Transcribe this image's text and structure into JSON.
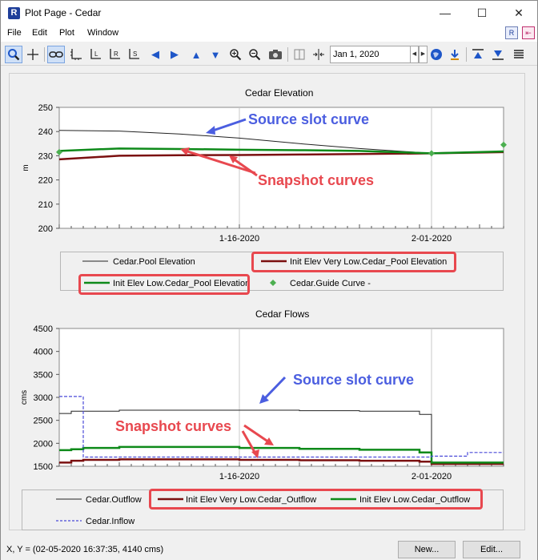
{
  "window": {
    "title": "Plot Page - Cedar",
    "app_icon_letter": "R",
    "minimize": "—",
    "maximize": "☐",
    "close": "✕"
  },
  "menu": {
    "items": [
      "File",
      "Edit",
      "Plot",
      "Window"
    ]
  },
  "toolbar": {
    "date_value": "Jan 1, 2020",
    "icons": [
      "zoom-icon",
      "crosshair-icon",
      "link-icon",
      "axis-icon",
      "axis-left-icon",
      "axis-right-icon",
      "axis-s-icon",
      "arrow-left-icon",
      "arrow-right-icon",
      "arrow-up-icon",
      "arrow-down-icon",
      "zoom-in-icon",
      "zoom-out-icon",
      "camera-icon",
      "split-icon",
      "fit-icon",
      "globe-icon",
      "download-icon",
      "align-top-icon",
      "align-bottom-icon",
      "list-icon"
    ]
  },
  "chart1": {
    "title": "Cedar Elevation",
    "legend": {
      "pool": "Cedar.Pool Elevation",
      "verylow": "Init Elev Very Low.Cedar_Pool Elevation",
      "low": "Init Elev Low.Cedar_Pool Elevation",
      "guide": "Cedar.Guide Curve -"
    },
    "annotations": {
      "source": "Source slot curve",
      "snapshot": "Snapshot curves"
    }
  },
  "chart2": {
    "title": "Cedar Flows",
    "legend": {
      "outflow": "Cedar.Outflow",
      "verylow": "Init Elev Very Low.Cedar_Outflow",
      "low": "Init Elev Low.Cedar_Outflow",
      "inflow": "Cedar.Inflow"
    },
    "annotations": {
      "source": "Source slot curve",
      "snapshot": "Snapshot curves"
    }
  },
  "status": {
    "xy": "X, Y = (02-05-2020 16:37:35, 4140 cms)"
  },
  "buttons": {
    "new": "New...",
    "edit": "Edit..."
  },
  "colors": {
    "source": "#222222",
    "verylow": "#7b1010",
    "low": "#0e8a1a",
    "inflow": "#4a4ad8",
    "guide": "#4caf50",
    "annotation_blue": "#4b5ee0",
    "annotation_red": "#e8484f"
  },
  "chart_data": [
    {
      "type": "line",
      "title": "Cedar Elevation",
      "xlabel": "",
      "ylabel": "m",
      "x_ticks": [
        "1-16-2020",
        "2-01-2020"
      ],
      "x_range": [
        "2020-01-01",
        "2020-02-07"
      ],
      "ylim": [
        200,
        250
      ],
      "y_ticks": [
        200,
        210,
        220,
        230,
        240,
        250
      ],
      "grid": true,
      "x": [
        "2020-01-01",
        "2020-01-06",
        "2020-01-11",
        "2020-01-16",
        "2020-01-21",
        "2020-01-26",
        "2020-02-01",
        "2020-02-07"
      ],
      "series": [
        {
          "name": "Cedar.Pool Elevation",
          "values": [
            240.5,
            240.2,
            239.0,
            237.3,
            235.0,
            233.0,
            231.0,
            231.5
          ]
        },
        {
          "name": "Init Elev Very Low.Cedar_Pool Elevation",
          "values": [
            228.5,
            230.0,
            230.2,
            230.3,
            230.5,
            230.7,
            231.0,
            231.5
          ]
        },
        {
          "name": "Init Elev Low.Cedar_Pool Elevation",
          "values": [
            232.0,
            233.0,
            232.8,
            232.5,
            232.3,
            232.0,
            231.0,
            231.8
          ]
        },
        {
          "name": "Cedar.Guide Curve -",
          "values": [
            231.5,
            null,
            null,
            null,
            null,
            null,
            231.0,
            234.5
          ]
        }
      ]
    },
    {
      "type": "line",
      "title": "Cedar Flows",
      "xlabel": "",
      "ylabel": "cms",
      "x_ticks": [
        "1-16-2020",
        "2-01-2020"
      ],
      "x_range": [
        "2020-01-01",
        "2020-02-07"
      ],
      "ylim": [
        1500,
        4500
      ],
      "y_ticks": [
        1500,
        2000,
        2500,
        3000,
        3500,
        4000,
        4500
      ],
      "grid": true,
      "x": [
        "2020-01-01",
        "2020-01-02",
        "2020-01-03",
        "2020-01-06",
        "2020-01-11",
        "2020-01-16",
        "2020-01-21",
        "2020-01-26",
        "2020-01-31",
        "2020-02-01",
        "2020-02-02",
        "2020-02-04",
        "2020-02-07"
      ],
      "series": [
        {
          "name": "Cedar.Outflow",
          "values": [
            2650,
            2700,
            2700,
            2720,
            2720,
            2720,
            2710,
            2700,
            2630,
            1550,
            1550,
            1550,
            1550
          ]
        },
        {
          "name": "Init Elev Very Low.Cedar_Outflow",
          "values": [
            1580,
            1620,
            1640,
            1650,
            1650,
            1640,
            1630,
            1620,
            1600,
            1550,
            1550,
            1550,
            1550
          ]
        },
        {
          "name": "Init Elev Low.Cedar_Outflow",
          "values": [
            1850,
            1870,
            1900,
            1920,
            1920,
            1900,
            1880,
            1860,
            1800,
            1580,
            1580,
            1580,
            1580
          ]
        },
        {
          "name": "Cedar.Inflow",
          "values": [
            3020,
            3020,
            1700,
            1700,
            1700,
            1700,
            1700,
            1700,
            1700,
            1720,
            1720,
            1800,
            1800
          ]
        }
      ]
    }
  ]
}
